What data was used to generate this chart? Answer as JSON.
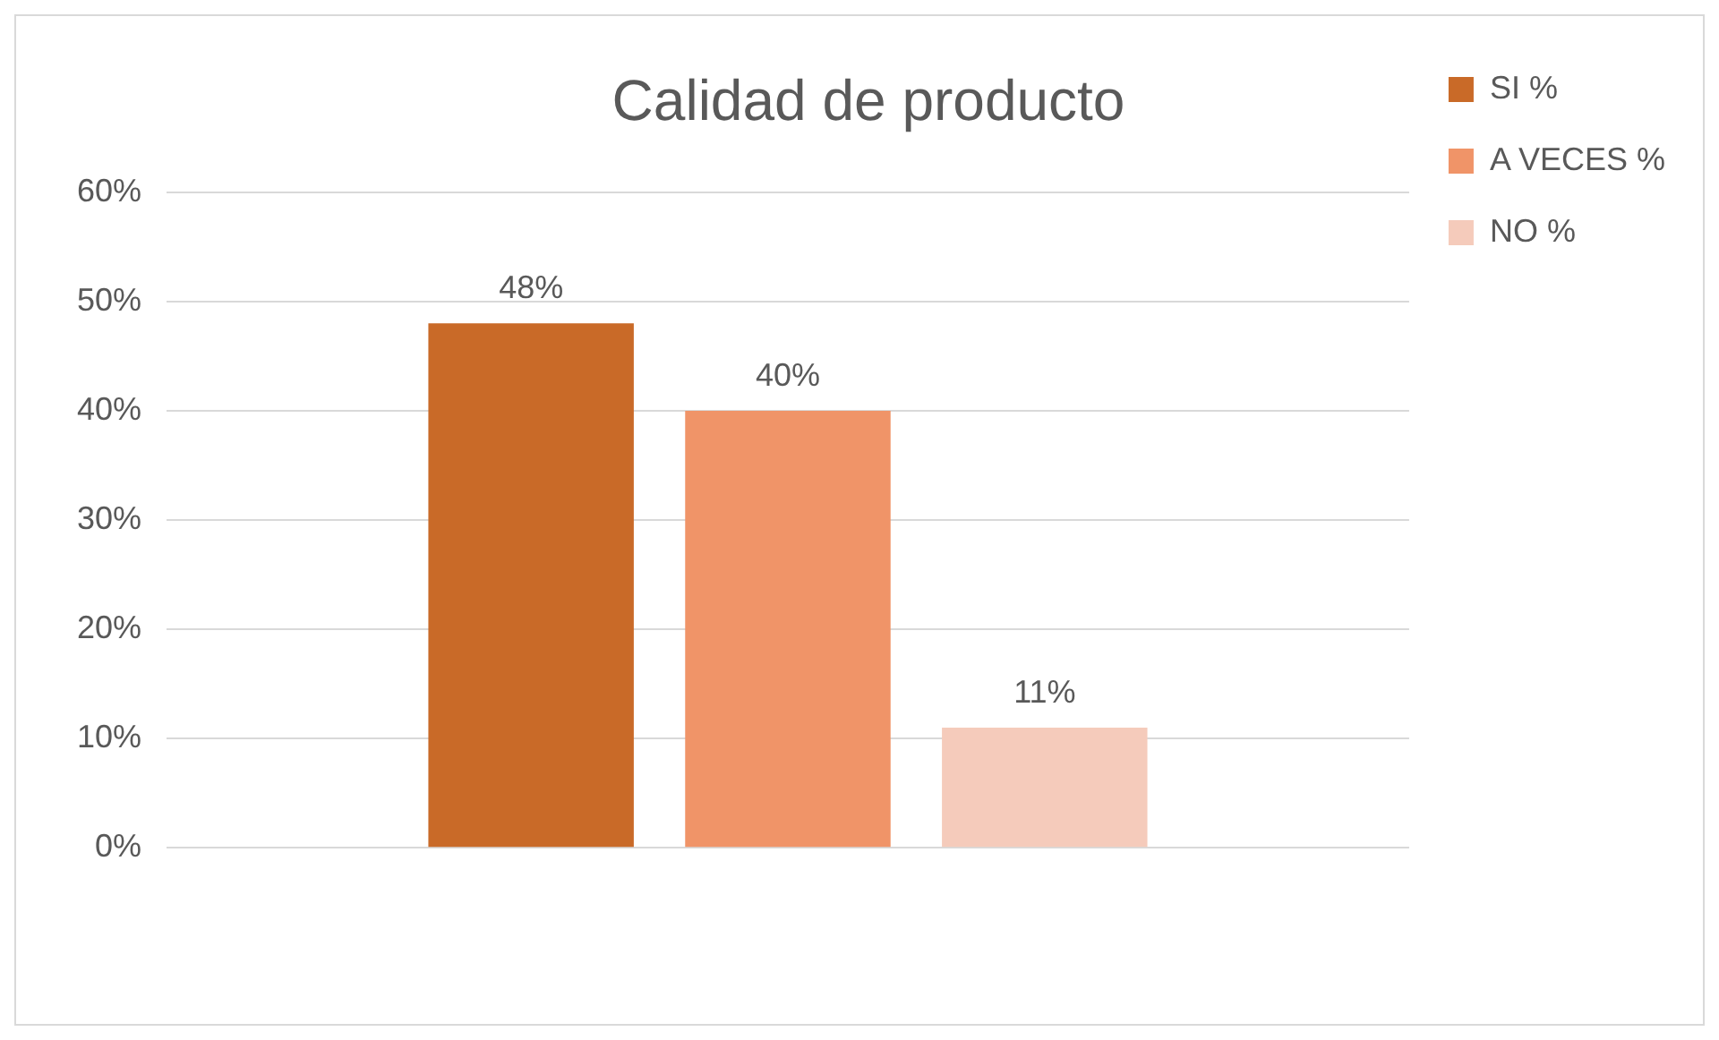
{
  "chart_data": {
    "type": "bar",
    "title": "Calidad de producto",
    "categories": [
      null
    ],
    "series": [
      {
        "name": "SI %",
        "color": "#c96a28",
        "values": [
          48
        ],
        "value_labels": [
          "48%"
        ]
      },
      {
        "name": "A VECES %",
        "color": "#f09468",
        "values": [
          40
        ],
        "value_labels": [
          "40%"
        ]
      },
      {
        "name": "NO %",
        "color": "#f5cbbb",
        "values": [
          11
        ],
        "value_labels": [
          "11%"
        ]
      }
    ],
    "ylim": [
      0,
      60
    ],
    "yticks": [
      {
        "value": 0,
        "label": "0%"
      },
      {
        "value": 10,
        "label": "10%"
      },
      {
        "value": 20,
        "label": "20%"
      },
      {
        "value": 30,
        "label": "30%"
      },
      {
        "value": 40,
        "label": "40%"
      },
      {
        "value": 50,
        "label": "50%"
      },
      {
        "value": 60,
        "label": "60%"
      }
    ],
    "grid": "y",
    "legend": "right"
  }
}
